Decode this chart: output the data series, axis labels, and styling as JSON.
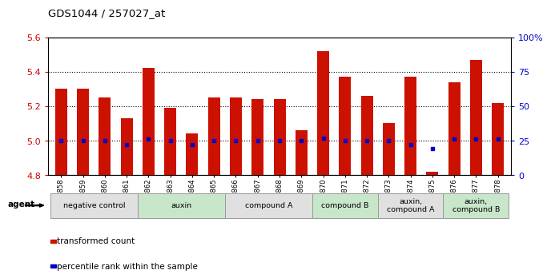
{
  "title": "GDS1044 / 257027_at",
  "samples": [
    "GSM25858",
    "GSM25859",
    "GSM25860",
    "GSM25861",
    "GSM25862",
    "GSM25863",
    "GSM25864",
    "GSM25865",
    "GSM25866",
    "GSM25867",
    "GSM25868",
    "GSM25869",
    "GSM25870",
    "GSM25871",
    "GSM25872",
    "GSM25873",
    "GSM25874",
    "GSM25875",
    "GSM25876",
    "GSM25877",
    "GSM25878"
  ],
  "bar_values": [
    5.3,
    5.3,
    5.25,
    5.13,
    5.42,
    5.19,
    5.04,
    5.25,
    5.25,
    5.24,
    5.24,
    5.06,
    5.52,
    5.37,
    5.26,
    5.1,
    5.37,
    4.82,
    5.34,
    5.47,
    5.22
  ],
  "percentile_values": [
    25,
    25,
    25,
    22,
    26,
    25,
    22,
    25,
    25,
    25,
    25,
    25,
    27,
    25,
    25,
    25,
    22,
    19,
    26,
    26,
    26
  ],
  "ylim_left": [
    4.8,
    5.6
  ],
  "ylim_right": [
    0,
    100
  ],
  "right_ticks": [
    0,
    25,
    50,
    75,
    100
  ],
  "right_tick_labels": [
    "0",
    "25",
    "50",
    "75",
    "100%"
  ],
  "left_ticks": [
    4.8,
    5.0,
    5.2,
    5.4,
    5.6
  ],
  "groups": [
    {
      "label": "negative control",
      "start": 0,
      "end": 4,
      "color": "#e0e0e0"
    },
    {
      "label": "auxin",
      "start": 4,
      "end": 8,
      "color": "#c8e6c9"
    },
    {
      "label": "compound A",
      "start": 8,
      "end": 12,
      "color": "#e0e0e0"
    },
    {
      "label": "compound B",
      "start": 12,
      "end": 15,
      "color": "#c8e6c9"
    },
    {
      "label": "auxin,\ncompound A",
      "start": 15,
      "end": 18,
      "color": "#e0e0e0"
    },
    {
      "label": "auxin,\ncompound B",
      "start": 18,
      "end": 21,
      "color": "#c8e6c9"
    }
  ],
  "bar_color": "#cc1100",
  "dot_color": "#0000cc",
  "bar_width": 0.55,
  "left_tick_color": "#cc0000",
  "right_tick_color": "#0000cc",
  "agent_label": "agent",
  "legend_items": [
    {
      "label": "transformed count",
      "color": "#cc1100"
    },
    {
      "label": "percentile rank within the sample",
      "color": "#0000cc"
    }
  ]
}
